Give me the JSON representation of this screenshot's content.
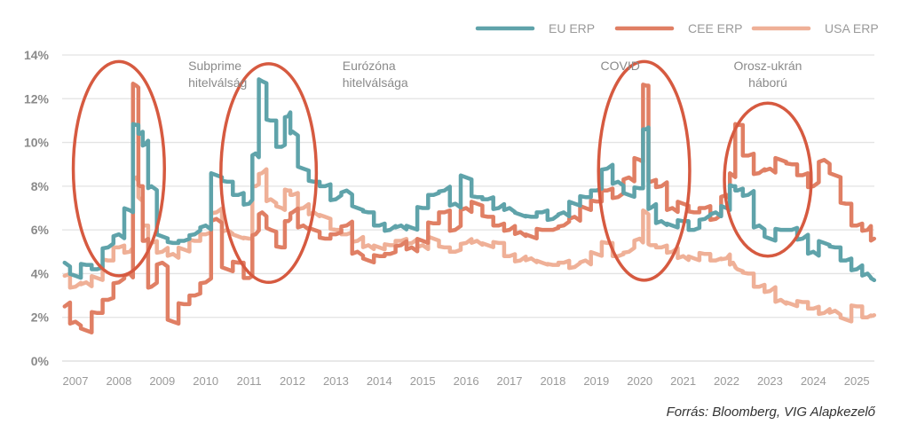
{
  "chart_data": {
    "type": "line",
    "title": "",
    "xlabel": "",
    "ylabel": "",
    "ylim": [
      0,
      14
    ],
    "y_ticks": [
      "0%",
      "2%",
      "4%",
      "6%",
      "8%",
      "10%",
      "12%",
      "14%"
    ],
    "y_tick_values": [
      0,
      2,
      4,
      6,
      8,
      10,
      12,
      14
    ],
    "x_ticks": [
      "2007",
      "2008",
      "2009",
      "2010",
      "2011",
      "2012",
      "2013",
      "2014",
      "2015",
      "2016",
      "2017",
      "2018",
      "2019",
      "2020",
      "2021",
      "2022",
      "2023",
      "2024",
      "2025"
    ],
    "xlim": [
      2006.7,
      2025.45
    ],
    "grid": true,
    "legend_position": "top-right",
    "x": [
      2006.75,
      2007.0,
      2007.25,
      2007.5,
      2007.75,
      2008.0,
      2008.25,
      2008.4,
      2008.5,
      2008.6,
      2008.75,
      2009.0,
      2009.25,
      2009.5,
      2009.75,
      2010.0,
      2010.25,
      2010.5,
      2010.75,
      2011.0,
      2011.15,
      2011.3,
      2011.5,
      2011.75,
      2011.9,
      2012.0,
      2012.25,
      2012.5,
      2012.75,
      2013.0,
      2013.25,
      2013.5,
      2013.75,
      2014.0,
      2014.25,
      2014.5,
      2014.75,
      2015.0,
      2015.25,
      2015.5,
      2015.75,
      2016.0,
      2016.25,
      2016.5,
      2016.75,
      2017.0,
      2017.25,
      2017.5,
      2017.75,
      2018.0,
      2018.25,
      2018.5,
      2018.75,
      2019.0,
      2019.25,
      2019.5,
      2019.75,
      2020.0,
      2020.15,
      2020.25,
      2020.5,
      2020.75,
      2021.0,
      2021.25,
      2021.5,
      2021.75,
      2022.0,
      2022.15,
      2022.25,
      2022.5,
      2022.75,
      2023.0,
      2023.25,
      2023.5,
      2023.75,
      2024.0,
      2024.25,
      2024.5,
      2024.75,
      2025.0,
      2025.25,
      2025.4
    ],
    "series": [
      {
        "name": "EU ERP",
        "color": "#5fa3aa",
        "values": [
          4.5,
          3.9,
          4.4,
          4.2,
          5.2,
          5.8,
          6.9,
          10.8,
          10.4,
          9.9,
          8.0,
          5.7,
          5.4,
          5.5,
          5.8,
          6.2,
          8.5,
          8.2,
          7.6,
          7.2,
          9.5,
          12.8,
          11.0,
          9.8,
          11.2,
          10.5,
          8.8,
          8.2,
          8.0,
          7.4,
          7.8,
          7.0,
          6.8,
          6.2,
          6.0,
          6.2,
          6.1,
          7.0,
          7.6,
          7.8,
          7.2,
          8.4,
          7.5,
          7.4,
          7.0,
          7.0,
          6.7,
          6.6,
          6.8,
          6.5,
          6.8,
          7.2,
          7.5,
          7.8,
          8.8,
          8.2,
          7.6,
          7.9,
          10.6,
          7.0,
          6.4,
          6.2,
          6.4,
          6.0,
          6.5,
          6.8,
          7.0,
          8.0,
          7.8,
          7.6,
          6.2,
          5.6,
          6.0,
          6.0,
          5.6,
          5.0,
          5.4,
          5.2,
          4.6,
          4.2,
          4.0,
          3.7
        ]
      },
      {
        "name": "CEE ERP",
        "color": "#e07f64",
        "values": [
          2.5,
          1.8,
          1.4,
          2.2,
          2.8,
          3.6,
          4.0,
          12.6,
          8.0,
          5.5,
          3.4,
          4.5,
          1.8,
          2.6,
          3.0,
          3.6,
          6.5,
          4.2,
          4.5,
          3.8,
          5.8,
          6.8,
          6.0,
          5.2,
          6.4,
          6.8,
          6.2,
          6.0,
          5.6,
          5.8,
          6.2,
          5.0,
          4.6,
          4.8,
          4.9,
          5.3,
          5.2,
          5.5,
          6.3,
          6.8,
          6.0,
          7.0,
          7.2,
          6.6,
          6.2,
          6.0,
          5.9,
          5.7,
          6.0,
          6.0,
          6.2,
          6.6,
          7.0,
          7.3,
          7.8,
          7.5,
          8.4,
          9.2,
          12.6,
          8.2,
          8.0,
          7.0,
          7.2,
          6.8,
          7.0,
          6.5,
          7.6,
          8.5,
          10.8,
          9.4,
          8.6,
          8.8,
          9.2,
          9.0,
          8.5,
          8.0,
          9.2,
          8.5,
          7.2,
          6.2,
          6.0,
          5.6
        ]
      },
      {
        "name": "USA ERP",
        "color": "#efb097",
        "values": [
          3.9,
          3.4,
          3.6,
          3.8,
          4.6,
          5.2,
          5.0,
          8.4,
          7.4,
          6.2,
          5.4,
          5.0,
          4.9,
          5.1,
          5.5,
          5.8,
          6.8,
          6.0,
          5.7,
          5.6,
          8.0,
          8.6,
          7.4,
          7.0,
          7.8,
          7.6,
          7.0,
          6.8,
          6.6,
          6.0,
          5.8,
          5.5,
          5.3,
          5.2,
          5.3,
          5.5,
          5.4,
          5.3,
          5.6,
          5.2,
          5.0,
          5.4,
          5.5,
          5.3,
          5.4,
          4.8,
          4.6,
          4.7,
          4.5,
          4.4,
          4.5,
          4.3,
          4.6,
          4.9,
          5.4,
          4.8,
          5.0,
          5.6,
          6.8,
          5.3,
          5.2,
          5.0,
          4.8,
          4.7,
          4.9,
          4.6,
          4.7,
          4.5,
          4.2,
          4.0,
          3.4,
          3.2,
          2.8,
          2.6,
          2.7,
          2.4,
          2.2,
          2.3,
          1.9,
          2.5,
          2.0,
          2.1
        ]
      }
    ],
    "annotations": [
      {
        "label_lines": [
          "Subprime",
          "hitelválság"
        ],
        "x": 2009.6,
        "y": 13.4,
        "align": "start"
      },
      {
        "label_lines": [
          "Eurózóna",
          "hitelválsága"
        ],
        "x": 2013.15,
        "y": 13.4,
        "align": "start"
      },
      {
        "label_lines": [
          "COVID"
        ],
        "x": 2019.55,
        "y": 13.4,
        "align": "middle"
      },
      {
        "label_lines": [
          "Orosz-ukrán",
          "háború"
        ],
        "x": 2022.95,
        "y": 13.4,
        "align": "middle"
      }
    ],
    "highlight_ellipses": [
      {
        "event": "Subprime hitelválság",
        "x_center": 2008.0,
        "y_center": 8.8,
        "x_radius": 1.05,
        "y_radius": 4.9
      },
      {
        "event": "Eurózóna hitelválsága",
        "x_center": 2011.45,
        "y_center": 8.6,
        "x_radius": 1.1,
        "y_radius": 5.0
      },
      {
        "event": "COVID",
        "x_center": 2020.1,
        "y_center": 8.7,
        "x_radius": 1.05,
        "y_radius": 5.0
      },
      {
        "event": "Orosz-ukrán háború",
        "x_center": 2022.95,
        "y_center": 8.3,
        "x_radius": 1.0,
        "y_radius": 3.5
      }
    ],
    "ellipse_color": "#d65a40"
  },
  "legend": {
    "items": [
      {
        "label": "EU ERP",
        "color": "#5fa3aa"
      },
      {
        "label": "CEE ERP",
        "color": "#e07f64"
      },
      {
        "label": "USA ERP",
        "color": "#efb097"
      }
    ]
  },
  "source": "Forrás: Bloomberg, VIG Alapkezelő"
}
